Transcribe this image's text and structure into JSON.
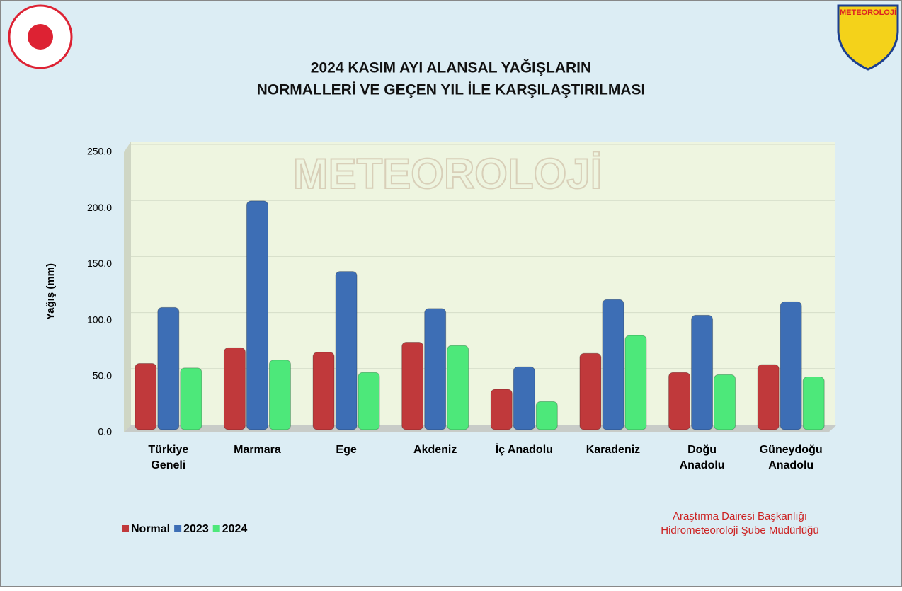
{
  "chart_data": {
    "type": "bar",
    "title": [
      "2024 KASIM AYI ALANSAL YAĞIŞLARIN",
      "NORMALLERİ VE GEÇEN YIL İLE KARŞILAŞTIRILMASI"
    ],
    "logo_label": "METEOROLOJİ",
    "y_label": "Yağış (mm)",
    "categories": [
      [
        "Türkiye",
        "Geneli"
      ],
      [
        "Marmara"
      ],
      [
        "Ege"
      ],
      [
        "Akdeniz"
      ],
      [
        "İç Anadolu"
      ],
      [
        "Karadeniz"
      ],
      [
        "Doğu",
        "Anadolu"
      ],
      [
        "Güneydoğu",
        "Anadolu"
      ]
    ],
    "series": [
      {
        "name": "Normal",
        "color": "#c0393b",
        "values": [
          59,
          73,
          69,
          78,
          36,
          68,
          51,
          58
        ]
      },
      {
        "name": "2023",
        "color": "#3d6eb5",
        "values": [
          109,
          204,
          141,
          108,
          56,
          116,
          102,
          114
        ]
      },
      {
        "name": "2024",
        "color": "#4de87a",
        "values": [
          55,
          62,
          51,
          75,
          25,
          84,
          49,
          47
        ]
      }
    ],
    "ylim": [
      0,
      250
    ],
    "yticks": [
      {
        "value": 0,
        "label": "0.0"
      },
      {
        "value": 50,
        "label": "50.0"
      },
      {
        "value": 100,
        "label": "100.0"
      },
      {
        "value": 150,
        "label": "150.0"
      },
      {
        "value": 200,
        "label": "200.0"
      },
      {
        "value": 250,
        "label": "250.0"
      }
    ],
    "grid": true,
    "legend": "bottom-left",
    "footer": [
      "Araştırma Dairesi Başkanlığı",
      "Hidrometeoroloji Şube Müdürlüğü"
    ]
  }
}
